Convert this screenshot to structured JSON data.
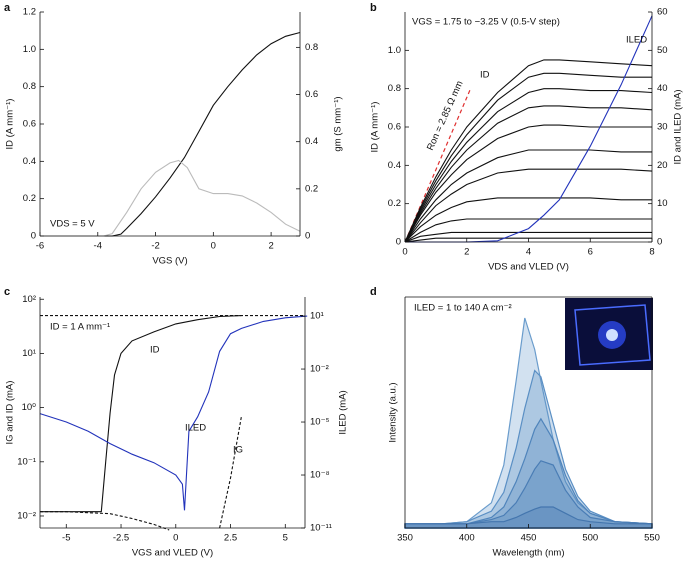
{
  "chart_data": [
    {
      "type": "line",
      "label": "a",
      "xlabel": "VGS (V)",
      "ylabel": "ID (A mm⁻¹)",
      "y2label": "gm (S mm⁻¹)",
      "annotations": [
        "VDS = 5 V"
      ],
      "xlim": [
        -6,
        3
      ],
      "xticks": [
        -6,
        -4,
        -2,
        0,
        2
      ],
      "ylim": [
        0,
        1.2
      ],
      "yticks": [
        0,
        0.2,
        0.4,
        0.6,
        0.8,
        {
          "value": 1,
          "label": "1.0"
        },
        1.2
      ],
      "y2lim": [
        0,
        0.95
      ],
      "y2ticks": [
        0,
        0.2,
        0.4,
        0.6,
        0.8
      ],
      "series": [
        {
          "color": "#111111",
          "x": [
            -6,
            -3.5,
            -3.2,
            -3,
            -2.5,
            -2,
            -1.5,
            -1,
            -0.5,
            0,
            0.5,
            1,
            1.5,
            2,
            2.5,
            3
          ],
          "values": [
            0,
            0,
            0.01,
            0.04,
            0.12,
            0.21,
            0.31,
            0.42,
            0.56,
            0.7,
            0.8,
            0.89,
            0.97,
            1.03,
            1.07,
            1.09
          ]
        },
        {
          "color": "#bbbbbb",
          "axis": "y2",
          "x": [
            -6,
            -3.8,
            -3.5,
            -3,
            -2.5,
            -2,
            -1.5,
            -1.2,
            -0.9,
            -0.5,
            0,
            0.5,
            1,
            1.5,
            2,
            2.5,
            3
          ],
          "values": [
            0,
            0,
            0.01,
            0.1,
            0.2,
            0.27,
            0.31,
            0.32,
            0.29,
            0.2,
            0.18,
            0.18,
            0.17,
            0.14,
            0.1,
            0.05,
            0.02
          ]
        }
      ]
    },
    {
      "type": "line",
      "label": "b",
      "xlabel": "VDS and VLED (V)",
      "ylabel": "ID (A mm⁻¹)",
      "y2label": "ID and ILED (mA)",
      "annotations": [
        "VGS = 1.75 to −3.25 V (0.5-V step)",
        "ID",
        "ILED",
        "Ron = 2.85 Ω mm"
      ],
      "xlim": [
        0,
        8
      ],
      "xticks": [
        0,
        2,
        4,
        6,
        8
      ],
      "ylim": [
        0,
        1.2
      ],
      "yticks": [
        0,
        0.2,
        0.4,
        0.6,
        0.8,
        {
          "value": 1,
          "label": "1.0"
        }
      ],
      "y2lim": [
        0,
        60
      ],
      "y2ticks": [
        0,
        10,
        20,
        30,
        40,
        50,
        60
      ],
      "x": [
        0,
        0.5,
        1,
        1.5,
        2,
        3,
        4,
        4.5,
        5,
        6,
        7,
        8
      ],
      "series": [
        {
          "color": "#111111",
          "values": [
            0,
            0.18,
            0.34,
            0.48,
            0.6,
            0.78,
            0.92,
            0.95,
            0.95,
            0.94,
            0.93,
            0.92
          ]
        },
        {
          "color": "#111111",
          "values": [
            0,
            0.17,
            0.32,
            0.45,
            0.56,
            0.74,
            0.86,
            0.88,
            0.88,
            0.87,
            0.86,
            0.86
          ]
        },
        {
          "color": "#111111",
          "values": [
            0,
            0.16,
            0.3,
            0.42,
            0.52,
            0.68,
            0.78,
            0.8,
            0.8,
            0.79,
            0.79,
            0.78
          ]
        },
        {
          "color": "#111111",
          "values": [
            0,
            0.15,
            0.28,
            0.39,
            0.48,
            0.62,
            0.7,
            0.71,
            0.71,
            0.7,
            0.7,
            0.69
          ]
        },
        {
          "color": "#111111",
          "values": [
            0,
            0.14,
            0.26,
            0.35,
            0.43,
            0.54,
            0.6,
            0.61,
            0.61,
            0.6,
            0.6,
            0.6
          ]
        },
        {
          "color": "#111111",
          "values": [
            0,
            0.12,
            0.22,
            0.3,
            0.36,
            0.44,
            0.48,
            0.48,
            0.48,
            0.48,
            0.47,
            0.47
          ]
        },
        {
          "color": "#111111",
          "values": [
            0,
            0.1,
            0.19,
            0.25,
            0.3,
            0.36,
            0.38,
            0.38,
            0.38,
            0.38,
            0.38,
            0.37
          ]
        },
        {
          "color": "#111111",
          "values": [
            0,
            0.08,
            0.14,
            0.18,
            0.21,
            0.23,
            0.23,
            0.23,
            0.23,
            0.23,
            0.22,
            0.22
          ]
        },
        {
          "color": "#111111",
          "values": [
            0,
            0.05,
            0.09,
            0.11,
            0.12,
            0.12,
            0.12,
            0.12,
            0.12,
            0.12,
            0.12,
            0.12
          ]
        },
        {
          "color": "#111111",
          "values": [
            0,
            0.03,
            0.04,
            0.05,
            0.05,
            0.05,
            0.05,
            0.05,
            0.05,
            0.05,
            0.05,
            0.05
          ]
        },
        {
          "color": "#111111",
          "values": [
            0,
            0.01,
            0.02,
            0.02,
            0.02,
            0.02,
            0.02,
            0.02,
            0.02,
            0.02,
            0.02,
            0.02
          ]
        },
        {
          "color": "#2233bb",
          "axis": "y2",
          "values": [
            0,
            0,
            0,
            0,
            0,
            0.3,
            3.5,
            7,
            11,
            25,
            41,
            59
          ]
        }
      ]
    },
    {
      "type": "line",
      "label": "c",
      "xlabel": "VGS and VLED (V)",
      "ylabel": "IG and ID (mA)",
      "y2label": "ILED (mA)",
      "annotations": [
        "ID = 1 A mm⁻¹",
        "ID",
        "ILED",
        "IG"
      ],
      "xlim": [
        -6.2,
        5.9
      ],
      "xticks": [
        -5,
        -2.5,
        0,
        2.5,
        5
      ],
      "yscale": "log",
      "ylim": [
        0.006,
        110
      ],
      "yticks": [
        {
          "value": 100,
          "label": "10²"
        },
        {
          "value": 10,
          "label": "10¹"
        },
        {
          "value": 1,
          "label": "10⁰"
        },
        {
          "value": 0.1,
          "label": "10⁻¹"
        },
        {
          "value": 0.01,
          "label": "10⁻²"
        }
      ],
      "y2scale": "log",
      "y2lim": [
        1e-11,
        120
      ],
      "y2ticks": [
        {
          "value": 10,
          "label": "10¹"
        },
        {
          "value": 0.01,
          "label": "10⁻²"
        },
        {
          "value": 1e-05,
          "label": "10⁻⁵"
        },
        {
          "value": 1e-08,
          "label": "10⁻⁸"
        },
        {
          "value": 1e-11,
          "label": "10⁻¹¹"
        }
      ],
      "series": [
        {
          "color": "#111111",
          "dash": true,
          "x": [
            -6.2,
            5.9
          ],
          "values": [
            50,
            50
          ]
        },
        {
          "color": "#111111",
          "x": [
            -6.2,
            -3.4,
            -3.2,
            -3,
            -2.8,
            -2.5,
            -2,
            -1,
            0,
            1,
            2,
            3
          ],
          "values": [
            0.012,
            0.012,
            0.1,
            0.8,
            4,
            10,
            17,
            25,
            35,
            42,
            48,
            50
          ]
        },
        {
          "color": "#111111",
          "dash": true,
          "x": [
            -6.2,
            -5,
            -3,
            -2,
            -1,
            -0.3,
            0.5,
            2,
            2.5,
            3
          ],
          "values": [
            0.012,
            0.012,
            0.011,
            0.009,
            0.007,
            0.0055,
            null,
            0.006,
            0.05,
            0.7
          ]
        },
        {
          "color": "#2233bb",
          "axis": "y2",
          "x": [
            -6.2,
            -5,
            -4,
            -3,
            -2,
            -1,
            0,
            0.3,
            0.4,
            0.6,
            1,
            1.5,
            2,
            2.5,
            3,
            4,
            5,
            6
          ],
          "values": [
            3e-05,
            1e-05,
            3e-06,
            6e-07,
            1.5e-07,
            5e-08,
            1e-08,
            3e-09,
            1e-10,
            3e-06,
            2e-05,
            0.0005,
            0.1,
            1,
            2,
            5,
            8,
            10
          ]
        }
      ]
    },
    {
      "type": "area",
      "label": "d",
      "xlabel": "Wavelength (nm)",
      "ylabel": "Intensity (a.u.)",
      "annotations": [
        "ILED = 1 to 140 A cm⁻²"
      ],
      "xlim": [
        350,
        550
      ],
      "xticks": [
        350,
        400,
        450,
        500,
        550
      ],
      "ylim": [
        0,
        1.1
      ],
      "x": [
        350,
        380,
        400,
        420,
        430,
        440,
        447,
        455,
        460,
        470,
        480,
        490,
        500,
        520,
        550
      ],
      "series": [
        {
          "color": "#6a9ccc",
          "values": [
            0.02,
            0.02,
            0.03,
            0.12,
            0.3,
            0.7,
            1.0,
            0.85,
            0.7,
            0.42,
            0.22,
            0.12,
            0.07,
            0.03,
            0.02
          ]
        },
        {
          "color": "#5a8fc4",
          "values": [
            0.02,
            0.02,
            0.03,
            0.08,
            0.17,
            0.38,
            0.57,
            0.75,
            0.72,
            0.5,
            0.28,
            0.15,
            0.08,
            0.03,
            0.02
          ]
        },
        {
          "color": "#4f84bb",
          "values": [
            0.02,
            0.02,
            0.02,
            0.05,
            0.1,
            0.22,
            0.33,
            0.47,
            0.52,
            0.42,
            0.25,
            0.13,
            0.07,
            0.03,
            0.02
          ]
        },
        {
          "color": "#4a7db5",
          "values": [
            0.02,
            0.02,
            0.02,
            0.04,
            0.06,
            0.12,
            0.19,
            0.28,
            0.32,
            0.3,
            0.18,
            0.1,
            0.05,
            0.03,
            0.02
          ]
        },
        {
          "color": "#4476ae",
          "values": [
            0.02,
            0.02,
            0.02,
            0.03,
            0.03,
            0.05,
            0.07,
            0.09,
            0.1,
            0.1,
            0.07,
            0.04,
            0.03,
            0.02,
            0.02
          ]
        }
      ]
    }
  ]
}
